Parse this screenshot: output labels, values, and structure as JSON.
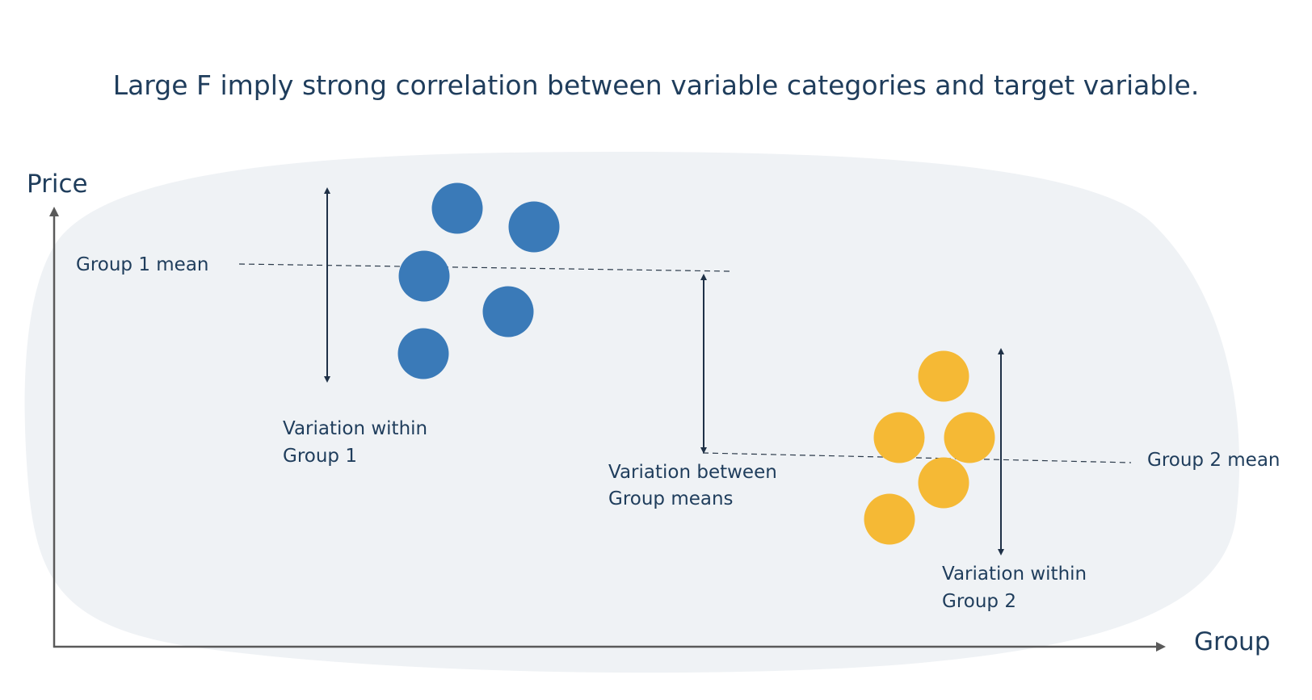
{
  "title": "Large F imply strong correlation between variable categories and target variable.",
  "axes": {
    "y_label": "Price",
    "x_label": "Group"
  },
  "group1": {
    "mean_label": "Group 1 mean",
    "within_label_line1": "Variation within",
    "within_label_line2": "Group 1",
    "color": "#3a7ab8"
  },
  "group2": {
    "mean_label": "Group 2 mean",
    "within_label_line1": "Variation within",
    "within_label_line2": "Group 2",
    "color": "#f5b935"
  },
  "between": {
    "label_line1": "Variation between",
    "label_line2": "Group means"
  },
  "colors": {
    "background_blob": "#eff2f5",
    "text": "#1f3d5c",
    "axis": "#5a5a5a"
  }
}
